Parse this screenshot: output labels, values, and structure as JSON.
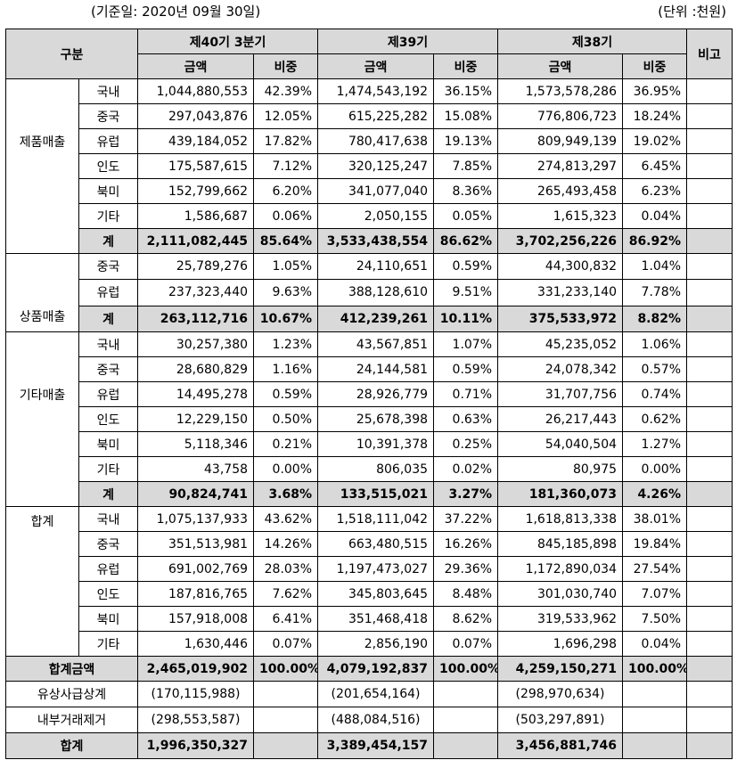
{
  "meta": {
    "date_label": "(기준일: 2020년 09월 30일)",
    "unit_label": "(단위 :천원)"
  },
  "header": {
    "category": "구분",
    "period1": "제40기 3분기",
    "period2": "제39기",
    "period3": "제38기",
    "note": "비고",
    "amount": "금액",
    "ratio": "비중"
  },
  "groups": [
    {
      "name": "제품매출",
      "rows": [
        [
          "국내",
          "1,044,880,553",
          "42.39%",
          "1,474,543,192",
          "36.15%",
          "1,573,578,286",
          "36.95%"
        ],
        [
          "중국",
          "297,043,876",
          "12.05%",
          "615,225,282",
          "15.08%",
          "776,806,723",
          "18.24%"
        ],
        [
          "유럽",
          "439,184,052",
          "17.82%",
          "780,417,638",
          "19.13%",
          "809,949,139",
          "19.02%"
        ],
        [
          "인도",
          "175,587,615",
          "7.12%",
          "320,125,247",
          "7.85%",
          "274,813,297",
          "6.45%"
        ],
        [
          "북미",
          "152,799,662",
          "6.20%",
          "341,077,040",
          "8.36%",
          "265,493,458",
          "6.23%"
        ],
        [
          "기타",
          "1,586,687",
          "0.06%",
          "2,050,155",
          "0.05%",
          "1,615,323",
          "0.04%"
        ]
      ],
      "subtotal": [
        "계",
        "2,111,082,445",
        "85.64%",
        "3,533,438,554",
        "86.62%",
        "3,702,256,226",
        "86.92%"
      ]
    },
    {
      "name": "상품매출",
      "rows": [
        [
          "중국",
          "25,789,276",
          "1.05%",
          "24,110,651",
          "0.59%",
          "44,300,832",
          "1.04%"
        ],
        [
          "유럽",
          "237,323,440",
          "9.63%",
          "388,128,610",
          "9.51%",
          "331,233,140",
          "7.78%"
        ]
      ],
      "subtotal": [
        "계",
        "263,112,716",
        "10.67%",
        "412,239,261",
        "10.11%",
        "375,533,972",
        "8.82%"
      ]
    },
    {
      "name": "기타매출",
      "rows": [
        [
          "국내",
          "30,257,380",
          "1.23%",
          "43,567,851",
          "1.07%",
          "45,235,052",
          "1.06%"
        ],
        [
          "중국",
          "28,680,829",
          "1.16%",
          "24,144,581",
          "0.59%",
          "24,078,342",
          "0.57%"
        ],
        [
          "유럽",
          "14,495,278",
          "0.59%",
          "28,926,779",
          "0.71%",
          "31,707,756",
          "0.74%"
        ],
        [
          "인도",
          "12,229,150",
          "0.50%",
          "25,678,398",
          "0.63%",
          "26,217,443",
          "0.62%"
        ],
        [
          "북미",
          "5,118,346",
          "0.21%",
          "10,391,378",
          "0.25%",
          "54,040,504",
          "1.27%"
        ],
        [
          "기타",
          "43,758",
          "0.00%",
          "806,035",
          "0.02%",
          "80,975",
          "0.00%"
        ]
      ],
      "subtotal": [
        "계",
        "90,824,741",
        "3.68%",
        "133,515,021",
        "3.27%",
        "181,360,073",
        "4.26%"
      ]
    },
    {
      "name": "합계",
      "rows": [
        [
          "국내",
          "1,075,137,933",
          "43.62%",
          "1,518,111,042",
          "37.22%",
          "1,618,813,338",
          "38.01%"
        ],
        [
          "중국",
          "351,513,981",
          "14.26%",
          "663,480,515",
          "16.26%",
          "845,185,898",
          "19.84%"
        ],
        [
          "유럽",
          "691,002,769",
          "28.03%",
          "1,197,473,027",
          "29.36%",
          "1,172,890,034",
          "27.54%"
        ],
        [
          "인도",
          "187,816,765",
          "7.62%",
          "345,803,645",
          "8.48%",
          "301,030,740",
          "7.07%"
        ],
        [
          "북미",
          "157,918,008",
          "6.41%",
          "351,468,418",
          "8.62%",
          "319,533,962",
          "7.50%"
        ],
        [
          "기타",
          "1,630,446",
          "0.07%",
          "2,856,190",
          "0.07%",
          "1,696,298",
          "0.04%"
        ]
      ],
      "subtotal": null
    }
  ],
  "total_amount": [
    "합계금액",
    "2,465,019,902",
    "100.00%",
    "4,079,192,837",
    "100.00%",
    "4,259,150,271",
    "100.00%"
  ],
  "adjustments": [
    [
      "유상사급상계",
      "(170,115,988)",
      "(201,654,164)",
      "(298,970,634)"
    ],
    [
      "내부거래제거",
      "(298,553,587)",
      "(488,084,516)",
      "(503,297,891)"
    ]
  ],
  "grand_total": [
    "합계",
    "1,996,350,327",
    "3,389,454,157",
    "3,456,881,746"
  ]
}
